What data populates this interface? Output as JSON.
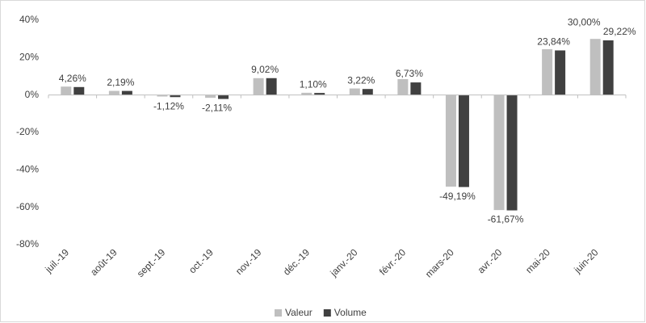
{
  "chart_data": {
    "type": "bar",
    "categories": [
      "juil.-19",
      "août-19",
      "sept.-19",
      "oct.-19",
      "nov.-19",
      "déc.-19",
      "janv.-20",
      "févr.-20",
      "mars-20",
      "avr.-20",
      "mai-20",
      "juin-20"
    ],
    "series": [
      {
        "name": "Valeur",
        "color": "#bfbfbf",
        "values": [
          4.5,
          2.2,
          -0.8,
          -1.5,
          9.0,
          1.2,
          3.5,
          8.5,
          -49.0,
          -61.5,
          24.5,
          30.0
        ],
        "value_labels": [
          null,
          null,
          null,
          null,
          null,
          null,
          null,
          null,
          null,
          null,
          null,
          "30,00%"
        ]
      },
      {
        "name": "Volume",
        "color": "#404040",
        "values": [
          4.26,
          2.19,
          -1.12,
          -2.11,
          9.02,
          1.1,
          3.22,
          6.73,
          -49.19,
          -61.67,
          23.84,
          29.22
        ],
        "value_labels": [
          "4,26%",
          "2,19%",
          "-1,12%",
          "-2,11%",
          "9,02%",
          "1,10%",
          "3,22%",
          "6,73%",
          "-49,19%",
          "-61,67%",
          "23,84%",
          "29,22%"
        ]
      }
    ],
    "ylim": [
      -80,
      40
    ],
    "yticks": [
      {
        "value": -80,
        "label": "-80%"
      },
      {
        "value": -60,
        "label": "-60%"
      },
      {
        "value": -40,
        "label": "-40%"
      },
      {
        "value": -20,
        "label": "-20%"
      },
      {
        "value": 0,
        "label": "0%"
      },
      {
        "value": 20,
        "label": "20%"
      },
      {
        "value": 40,
        "label": "40%"
      }
    ],
    "grid": false,
    "legend": "bottom"
  }
}
